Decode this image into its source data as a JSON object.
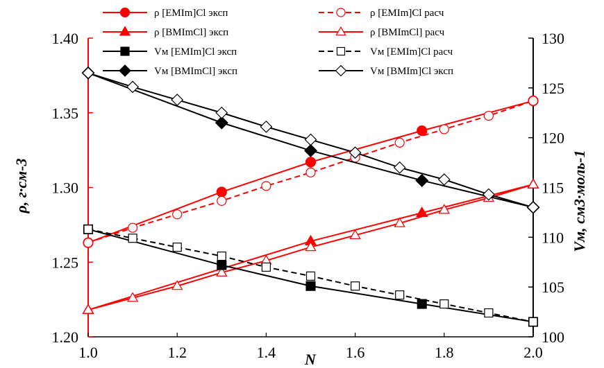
{
  "chart_data": {
    "type": "line",
    "xlabel": "N",
    "ylabel_left": "ρ, г·см-3",
    "ylabel_right": "Vм, см3·моль-1",
    "xlim": [
      1.0,
      2.0
    ],
    "ylim_left": [
      1.2,
      1.4
    ],
    "ylim_right": [
      100,
      130
    ],
    "x_ticks": [
      "1.0",
      "1.2",
      "1.4",
      "1.6",
      "1.8",
      "2.0"
    ],
    "y_left_ticks": [
      "1.20",
      "1.25",
      "1.30",
      "1.35",
      "1.40"
    ],
    "y_right_ticks": [
      "100",
      "105",
      "110",
      "115",
      "120",
      "125",
      "130"
    ],
    "grid": false,
    "legend_position": "top",
    "series": [
      {
        "name": "ρ [EMIm]Cl эксп",
        "axis": "left",
        "color": "#ff0000",
        "marker": "circle",
        "filled": true,
        "dashed": false,
        "x": [
          1.0,
          1.3,
          1.5,
          1.75,
          2.0
        ],
        "y": [
          1.263,
          1.297,
          1.317,
          1.338,
          1.358
        ]
      },
      {
        "name": "ρ [EMIm]Cl расч",
        "axis": "left",
        "color": "#ff0000",
        "marker": "circle",
        "filled": false,
        "dashed": true,
        "x": [
          1.0,
          1.1,
          1.2,
          1.3,
          1.4,
          1.5,
          1.6,
          1.7,
          1.8,
          1.9,
          2.0
        ],
        "y": [
          1.263,
          1.273,
          1.282,
          1.291,
          1.301,
          1.31,
          1.32,
          1.33,
          1.339,
          1.348,
          1.358
        ]
      },
      {
        "name": "ρ [BMImCl] эксп",
        "axis": "left",
        "color": "#ff0000",
        "marker": "triangle",
        "filled": true,
        "dashed": false,
        "x": [
          1.0,
          1.5,
          1.75,
          2.0
        ],
        "y": [
          1.218,
          1.264,
          1.283,
          1.302
        ]
      },
      {
        "name": "ρ [BMImCl] расч",
        "axis": "left",
        "color": "#ff0000",
        "marker": "triangle",
        "filled": false,
        "dashed": false,
        "x": [
          1.0,
          1.1,
          1.2,
          1.3,
          1.4,
          1.5,
          1.6,
          1.7,
          1.8,
          1.9,
          2.0
        ],
        "y": [
          1.218,
          1.226,
          1.234,
          1.243,
          1.251,
          1.26,
          1.268,
          1.276,
          1.285,
          1.293,
          1.302
        ]
      },
      {
        "name": "Vм [EMIm]Cl эксп",
        "axis": "right",
        "color": "#000000",
        "marker": "square",
        "filled": true,
        "dashed": false,
        "x": [
          1.0,
          1.3,
          1.5,
          1.75,
          2.0
        ],
        "y": [
          110.8,
          107.2,
          105.1,
          103.3,
          101.5
        ]
      },
      {
        "name": "Vм [EMIm]Cl расч",
        "axis": "right",
        "color": "#000000",
        "marker": "square",
        "filled": false,
        "dashed": true,
        "x": [
          1.0,
          1.1,
          1.2,
          1.3,
          1.4,
          1.5,
          1.6,
          1.7,
          1.8,
          1.9,
          2.0
        ],
        "y": [
          110.8,
          109.9,
          109.0,
          108.1,
          107.0,
          106.1,
          105.1,
          104.2,
          103.3,
          102.4,
          101.5
        ]
      },
      {
        "name": "Vм [BMImCl] эксп",
        "axis": "right",
        "color": "#000000",
        "marker": "diamond",
        "filled": true,
        "dashed": false,
        "x": [
          1.0,
          1.3,
          1.5,
          1.75,
          2.0
        ],
        "y": [
          126.5,
          121.5,
          118.7,
          115.7,
          113.0
        ]
      },
      {
        "name": "Vм [BMIm]Cl эксп",
        "axis": "right",
        "color": "#000000",
        "marker": "diamond",
        "filled": false,
        "dashed": false,
        "x": [
          1.0,
          1.1,
          1.2,
          1.3,
          1.4,
          1.5,
          1.6,
          1.7,
          1.8,
          1.9,
          2.0
        ],
        "y": [
          126.5,
          125.1,
          123.8,
          122.5,
          121.1,
          119.8,
          118.5,
          117.0,
          115.8,
          114.3,
          113.0
        ]
      }
    ]
  }
}
